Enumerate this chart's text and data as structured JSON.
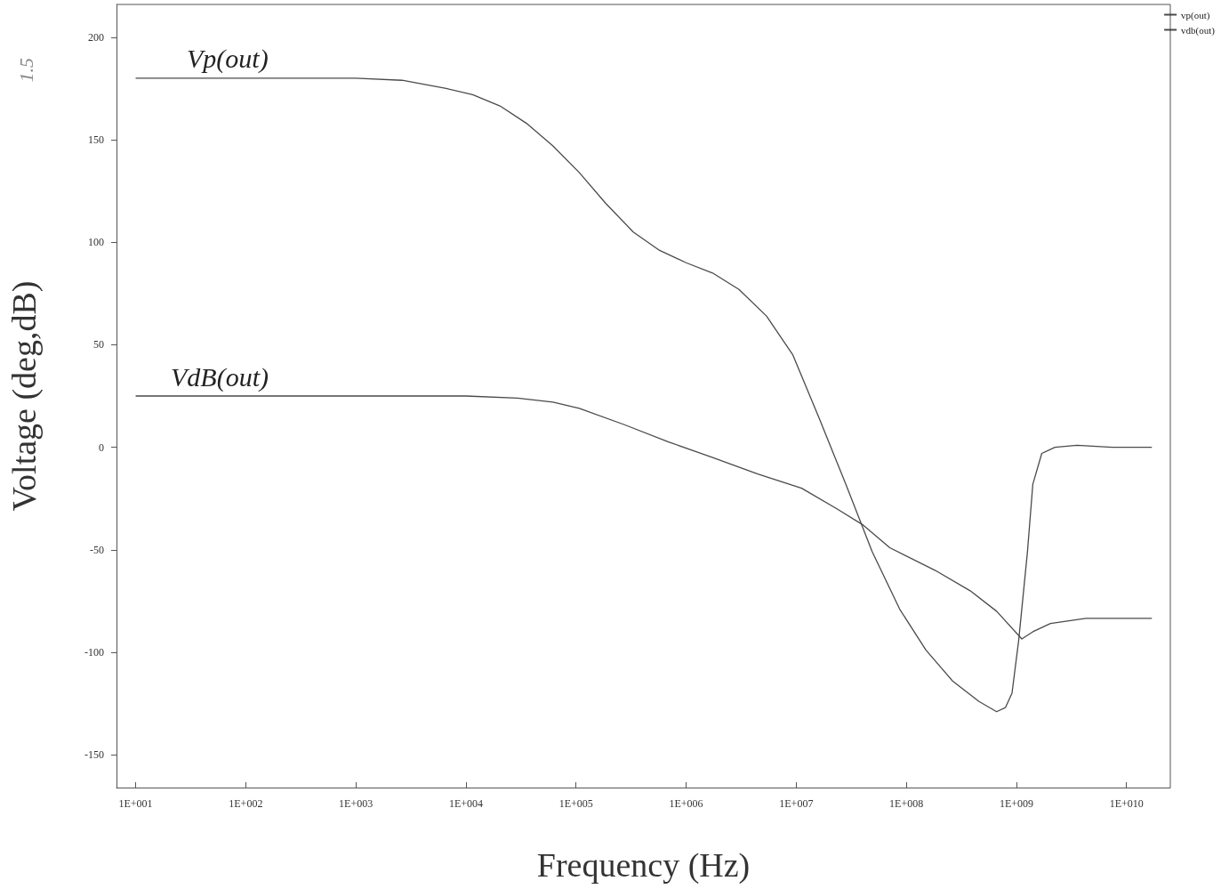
{
  "chart_data": {
    "type": "line",
    "xlabel": "Frequency (Hz)",
    "ylabel": "Voltage (deg,dB)",
    "log": "x",
    "grid": false,
    "legend": "top right",
    "marker": "none",
    "line_style": "solid",
    "xlim": [
      6.7,
      25000000000
    ],
    "ylim": [
      -166,
      216
    ],
    "xticks": [
      {
        "value": 10,
        "label": "1E+001"
      },
      {
        "value": 100,
        "label": "1E+002"
      },
      {
        "value": 1000,
        "label": "1E+003"
      },
      {
        "value": 10000,
        "label": "1E+004"
      },
      {
        "value": 100000,
        "label": "1E+005"
      },
      {
        "value": 1000000,
        "label": "1E+006"
      },
      {
        "value": 10000000,
        "label": "1E+007"
      },
      {
        "value": 100000000,
        "label": "1E+008"
      },
      {
        "value": 1000000000,
        "label": "1E+009"
      },
      {
        "value": 10000000000,
        "label": "1E+010"
      }
    ],
    "yticks": [
      -150,
      -100,
      -50,
      0,
      50,
      100,
      150,
      200
    ],
    "series": [
      {
        "name": "vp(out)",
        "color": "#4a4a4a",
        "x": [
          10,
          100,
          1000,
          2630,
          6610,
          11500,
          20400,
          35500,
          61700,
          107000,
          186000,
          331000,
          575000,
          1000000,
          1740000,
          3020000,
          5370000,
          9330000,
          16200000,
          28200000,
          49000000,
          87100000,
          151000000,
          263000000,
          457000000,
          661000000,
          794000000,
          912000000,
          1050000000,
          1260000000,
          1410000000,
          1700000000,
          2240000000,
          3550000000,
          7410000000,
          17000000000
        ],
        "values": [
          180,
          180,
          180,
          179,
          175,
          172,
          166.5,
          158,
          147,
          134,
          119,
          105,
          96,
          90,
          85,
          77,
          64,
          45,
          14,
          -18,
          -51,
          -79,
          -99,
          -114,
          -124,
          -129,
          -127,
          -120,
          -94,
          -51,
          -18,
          -3,
          0,
          1,
          0,
          0
        ]
      },
      {
        "name": "vdb(out)",
        "color": "#4a4a4a",
        "x": [
          10,
          100,
          1000,
          10000,
          29500,
          61700,
          107000,
          275000,
          692000,
          1740000,
          4470000,
          11200000,
          23400000,
          40700000,
          70800000,
          182000000,
          380000000,
          661000000,
          1120000000,
          1410000000,
          2040000000,
          4270000000,
          17000000000
        ],
        "values": [
          25,
          25,
          25,
          25,
          24,
          22,
          19,
          11,
          2.6,
          -5,
          -13,
          -20,
          -30,
          -38,
          -49,
          -60,
          -70,
          -80,
          -93.5,
          -90,
          -86,
          -83.5,
          -83.5
        ]
      }
    ],
    "annotations": [
      "Vp(out)",
      "VdB(out)",
      "1.5"
    ]
  }
}
